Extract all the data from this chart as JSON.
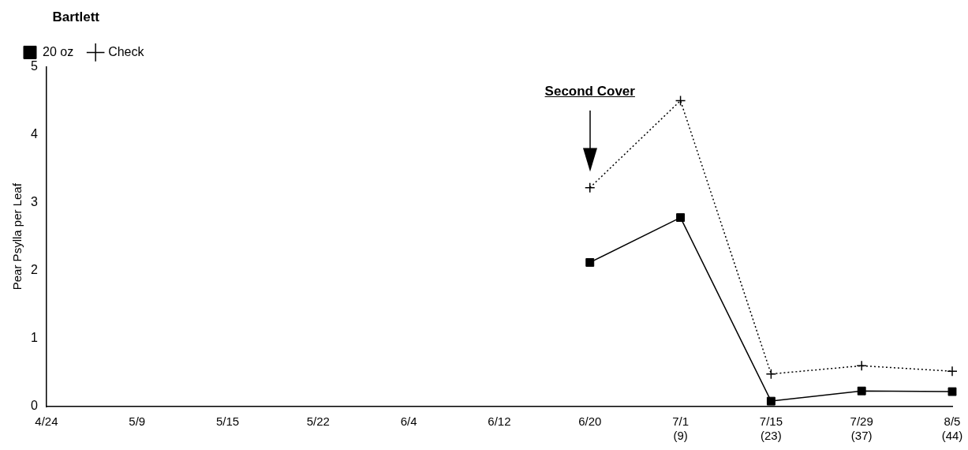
{
  "chart_data": {
    "type": "line",
    "ylabel": "Pear Psylla per Leaf",
    "legend_title": "Bartlett",
    "legend": "top left",
    "categories": [
      "4/24",
      "5/9",
      "5/15",
      "5/22",
      "6/4",
      "6/12",
      "6/20",
      "7/1\n(9)",
      "7/15\n(23)",
      "7/29\n(37)",
      "8/5\n(44)"
    ],
    "series": [
      {
        "name": "20 oz",
        "color": "#000000",
        "marker": "square",
        "line_style": "solid",
        "values": [
          null,
          null,
          null,
          null,
          null,
          null,
          2.12,
          2.78,
          0.08,
          0.23,
          0.22
        ]
      },
      {
        "name": "Check",
        "color": "#000000",
        "marker": "cross",
        "line_style": "dotted",
        "values": [
          null,
          null,
          null,
          null,
          null,
          null,
          3.22,
          4.5,
          0.48,
          0.6,
          0.52
        ]
      }
    ],
    "ylim": [
      0,
      5
    ],
    "yticks": [
      0,
      1,
      2,
      3,
      4,
      5
    ],
    "grid": false,
    "annotations": [
      "Second Cover"
    ]
  }
}
